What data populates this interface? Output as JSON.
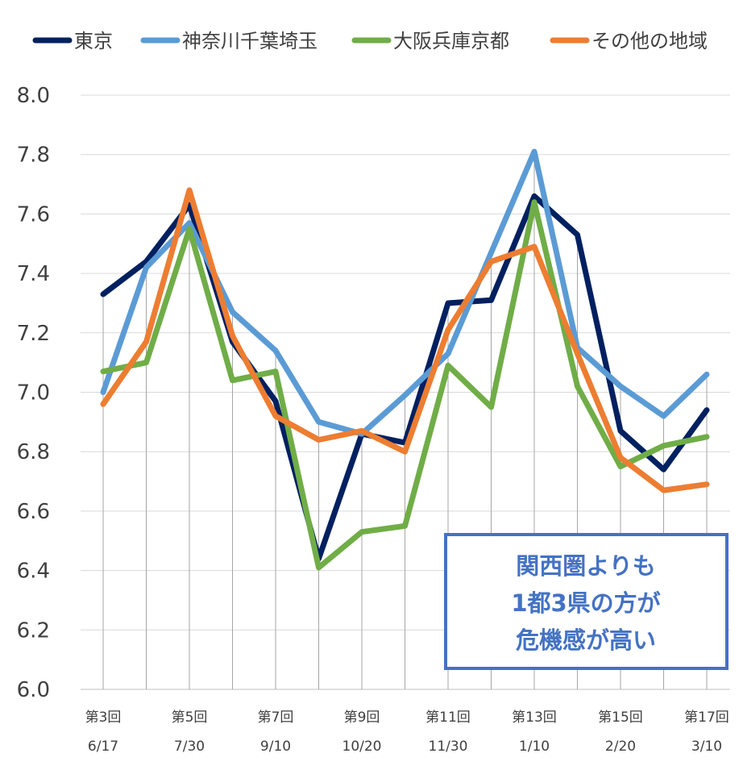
{
  "chart_data": {
    "type": "line",
    "title": "",
    "xlabel": "",
    "ylabel": "",
    "ylim": [
      6.0,
      8.0
    ],
    "yticks": [
      "8.0",
      "7.8",
      "7.6",
      "7.4",
      "7.2",
      "7.0",
      "6.8",
      "6.6",
      "6.4",
      "6.2",
      "6.0"
    ],
    "x_count": 15,
    "x_tick_labels": [
      {
        "index": 0,
        "round": "第3回",
        "date": "6/17"
      },
      {
        "index": 2,
        "round": "第5回",
        "date": "7/30"
      },
      {
        "index": 4,
        "round": "第7回",
        "date": "9/10"
      },
      {
        "index": 6,
        "round": "第9回",
        "date": "10/20"
      },
      {
        "index": 8,
        "round": "第11回",
        "date": "11/30"
      },
      {
        "index": 10,
        "round": "第13回",
        "date": "1/10"
      },
      {
        "index": 12,
        "round": "第15回",
        "date": "2/20"
      },
      {
        "index": 14,
        "round": "第17回",
        "date": "3/10"
      }
    ],
    "legend_position": "top",
    "grid": true,
    "series": [
      {
        "name": "東京",
        "color": "#002060",
        "values": [
          7.33,
          7.44,
          7.63,
          7.17,
          6.97,
          6.44,
          6.86,
          6.83,
          7.3,
          7.31,
          7.66,
          7.53,
          6.87,
          6.74,
          6.94
        ]
      },
      {
        "name": "神奈川千葉埼玉",
        "color": "#5b9bd5",
        "values": [
          7.0,
          7.42,
          7.57,
          7.27,
          7.14,
          6.9,
          6.86,
          6.99,
          7.13,
          7.47,
          7.81,
          7.15,
          7.02,
          6.92,
          7.06
        ]
      },
      {
        "name": "大阪兵庫京都",
        "color": "#70ad47",
        "values": [
          7.07,
          7.1,
          7.55,
          7.04,
          7.07,
          6.41,
          6.53,
          6.55,
          7.09,
          6.95,
          7.64,
          7.02,
          6.75,
          6.82,
          6.85
        ]
      },
      {
        "name": "その他の地域",
        "color": "#ed7d31",
        "values": [
          6.96,
          7.17,
          7.68,
          7.19,
          6.92,
          6.84,
          6.87,
          6.8,
          7.21,
          7.44,
          7.49,
          7.13,
          6.78,
          6.67,
          6.69
        ]
      }
    ],
    "annotation": {
      "lines": [
        "関西圏よりも",
        "1都3県の方が",
        "危機感が高い"
      ],
      "border_color": "#4472c4",
      "text_color": "#4472c4"
    }
  }
}
